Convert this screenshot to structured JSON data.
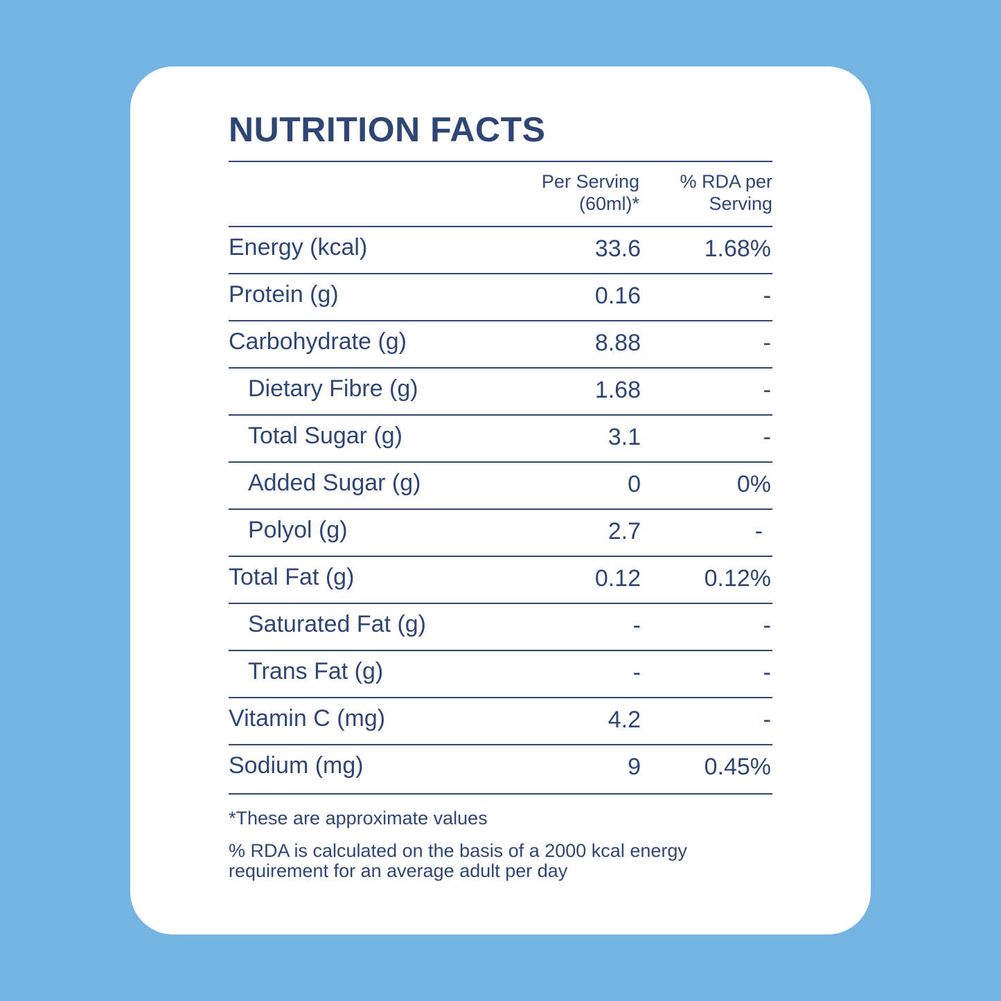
{
  "title": "NUTRITION FACTS",
  "headers": {
    "per_serving_line1": "Per Serving",
    "per_serving_line2": "(60ml)*",
    "rda_line1": "% RDA per",
    "rda_line2": "Serving"
  },
  "rows": [
    {
      "label": "Energy (kcal)",
      "value": "33.6",
      "rda": "1.68%",
      "sub": false
    },
    {
      "label": "Protein (g)",
      "value": "0.16",
      "rda": "-",
      "sub": false
    },
    {
      "label": "Carbohydrate (g)",
      "value": "8.88",
      "rda": "-",
      "sub": false
    },
    {
      "label": "Dietary Fibre (g)",
      "value": "1.68",
      "rda": "-",
      "sub": true
    },
    {
      "label": "Total Sugar (g)",
      "value": "3.1",
      "rda": "-",
      "sub": true
    },
    {
      "label": "Added Sugar (g)",
      "value": "0",
      "rda": "0%",
      "sub": true
    },
    {
      "label": "Polyol (g)",
      "value": "2.7",
      "rda": "-",
      "sub": true
    },
    {
      "label": "Total Fat (g)",
      "value": "0.12",
      "rda": "0.12%",
      "sub": false
    },
    {
      "label": "Saturated Fat (g)",
      "value": "-",
      "rda": "-",
      "sub": true
    },
    {
      "label": "Trans Fat (g)",
      "value": "-",
      "rda": "-",
      "sub": true
    },
    {
      "label": "Vitamin C (mg)",
      "value": "4.2",
      "rda": "-",
      "sub": false
    },
    {
      "label": "Sodium (mg)",
      "value": "9",
      "rda": "0.45%",
      "sub": false
    }
  ],
  "footnotes": {
    "approx": "*These are approximate values",
    "rda_basis": "%  RDA is calculated on the basis of a 2000 kcal energy requirement for an average adult per day"
  },
  "colors": {
    "background": "#74b3e2",
    "card": "#ffffff",
    "text": "#2f4675"
  }
}
